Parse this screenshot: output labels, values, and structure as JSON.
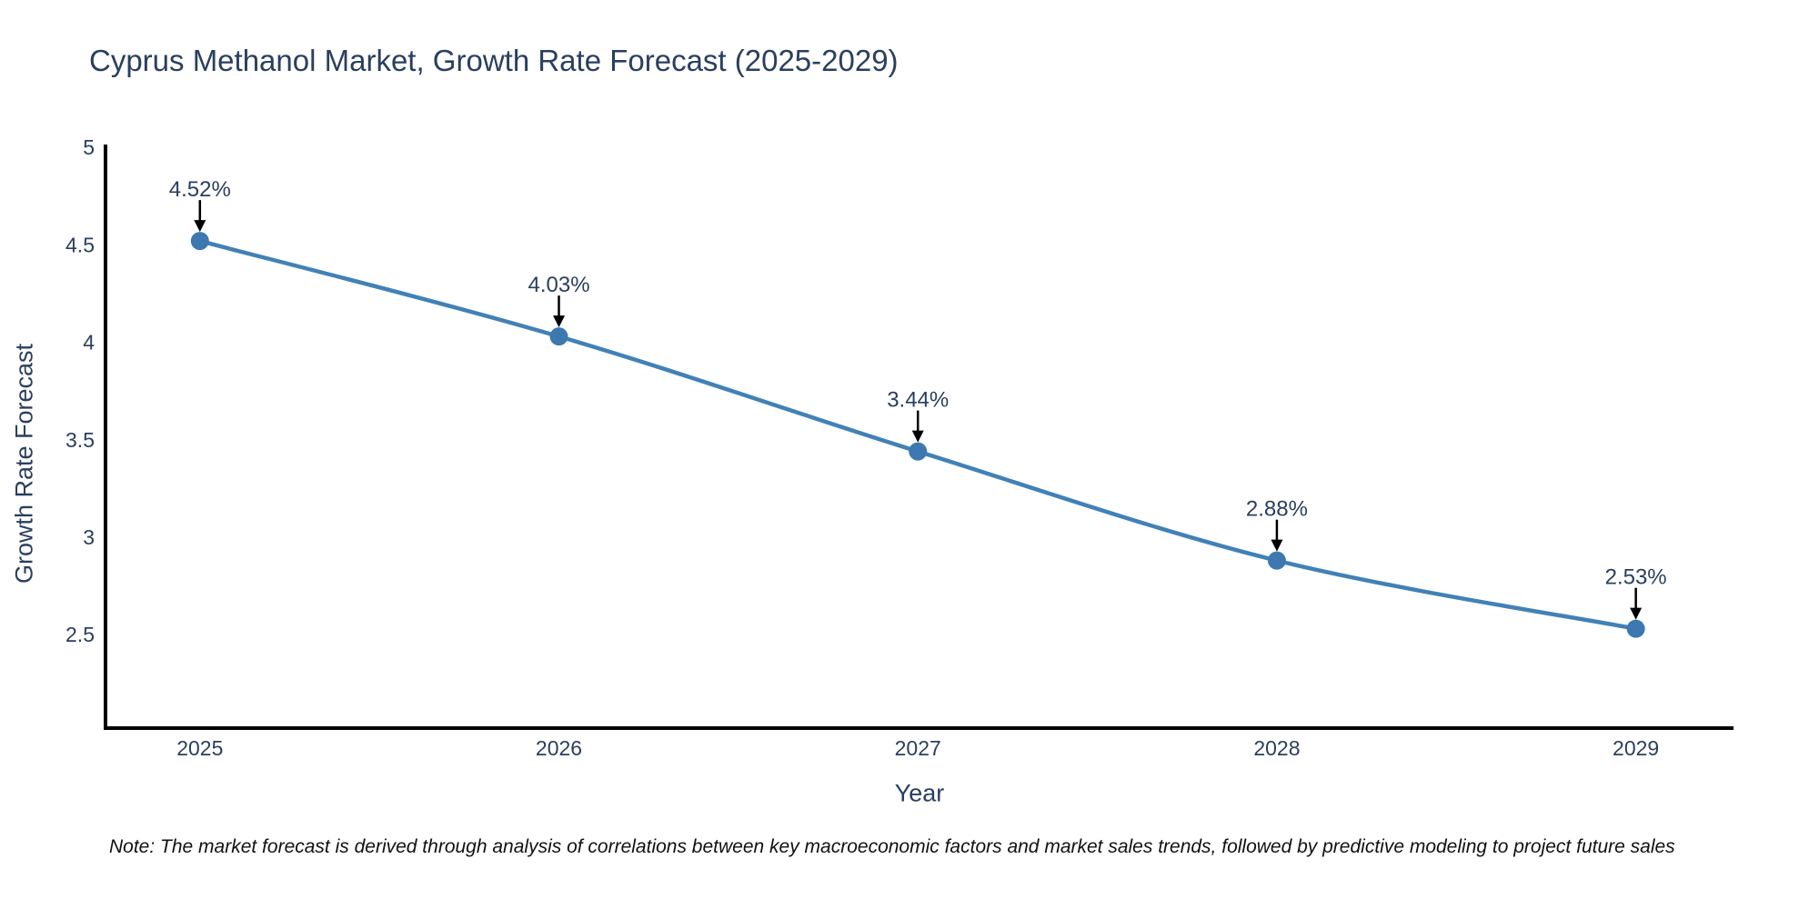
{
  "header": {
    "title": "Cyprus Methanol Market, Growth Rate Forecast (2025-2029)"
  },
  "footer": {
    "note": "Note: The market forecast is derived through analysis of correlations between key macroeconomic factors and market sales trends, followed by predictive modeling to project future sales"
  },
  "chart_data": {
    "type": "line",
    "title": "Cyprus Methanol Market, Growth Rate Forecast (2025-2029)",
    "xlabel": "Year",
    "ylabel": "Growth Rate Forecast",
    "x": [
      2025,
      2026,
      2027,
      2028,
      2029
    ],
    "values": [
      4.52,
      4.03,
      3.44,
      2.88,
      2.53
    ],
    "point_labels": [
      "4.52%",
      "4.03%",
      "3.44%",
      "2.88%",
      "2.53%"
    ],
    "xticks": [
      "2025",
      "2026",
      "2027",
      "2028",
      "2029"
    ],
    "xtick_values": [
      2025,
      2026,
      2027,
      2028,
      2029
    ],
    "yticks": [
      "5",
      "4.5",
      "4",
      "3.5",
      "3",
      "2.5"
    ],
    "ytick_values": [
      5,
      4.5,
      4,
      3.5,
      3,
      2.5
    ],
    "xlim": [
      2024.737,
      2029.272
    ],
    "ylim": [
      2.02,
      5.015
    ],
    "grid": false,
    "legend": false,
    "line_shape": "spline",
    "colors": {
      "line": "#4181b6",
      "marker": "#3d79b0",
      "axis_line": "#000000",
      "tick_text": "#2a3f5f",
      "annotation_text": "#2a3f5f",
      "arrow": "#000000"
    }
  }
}
